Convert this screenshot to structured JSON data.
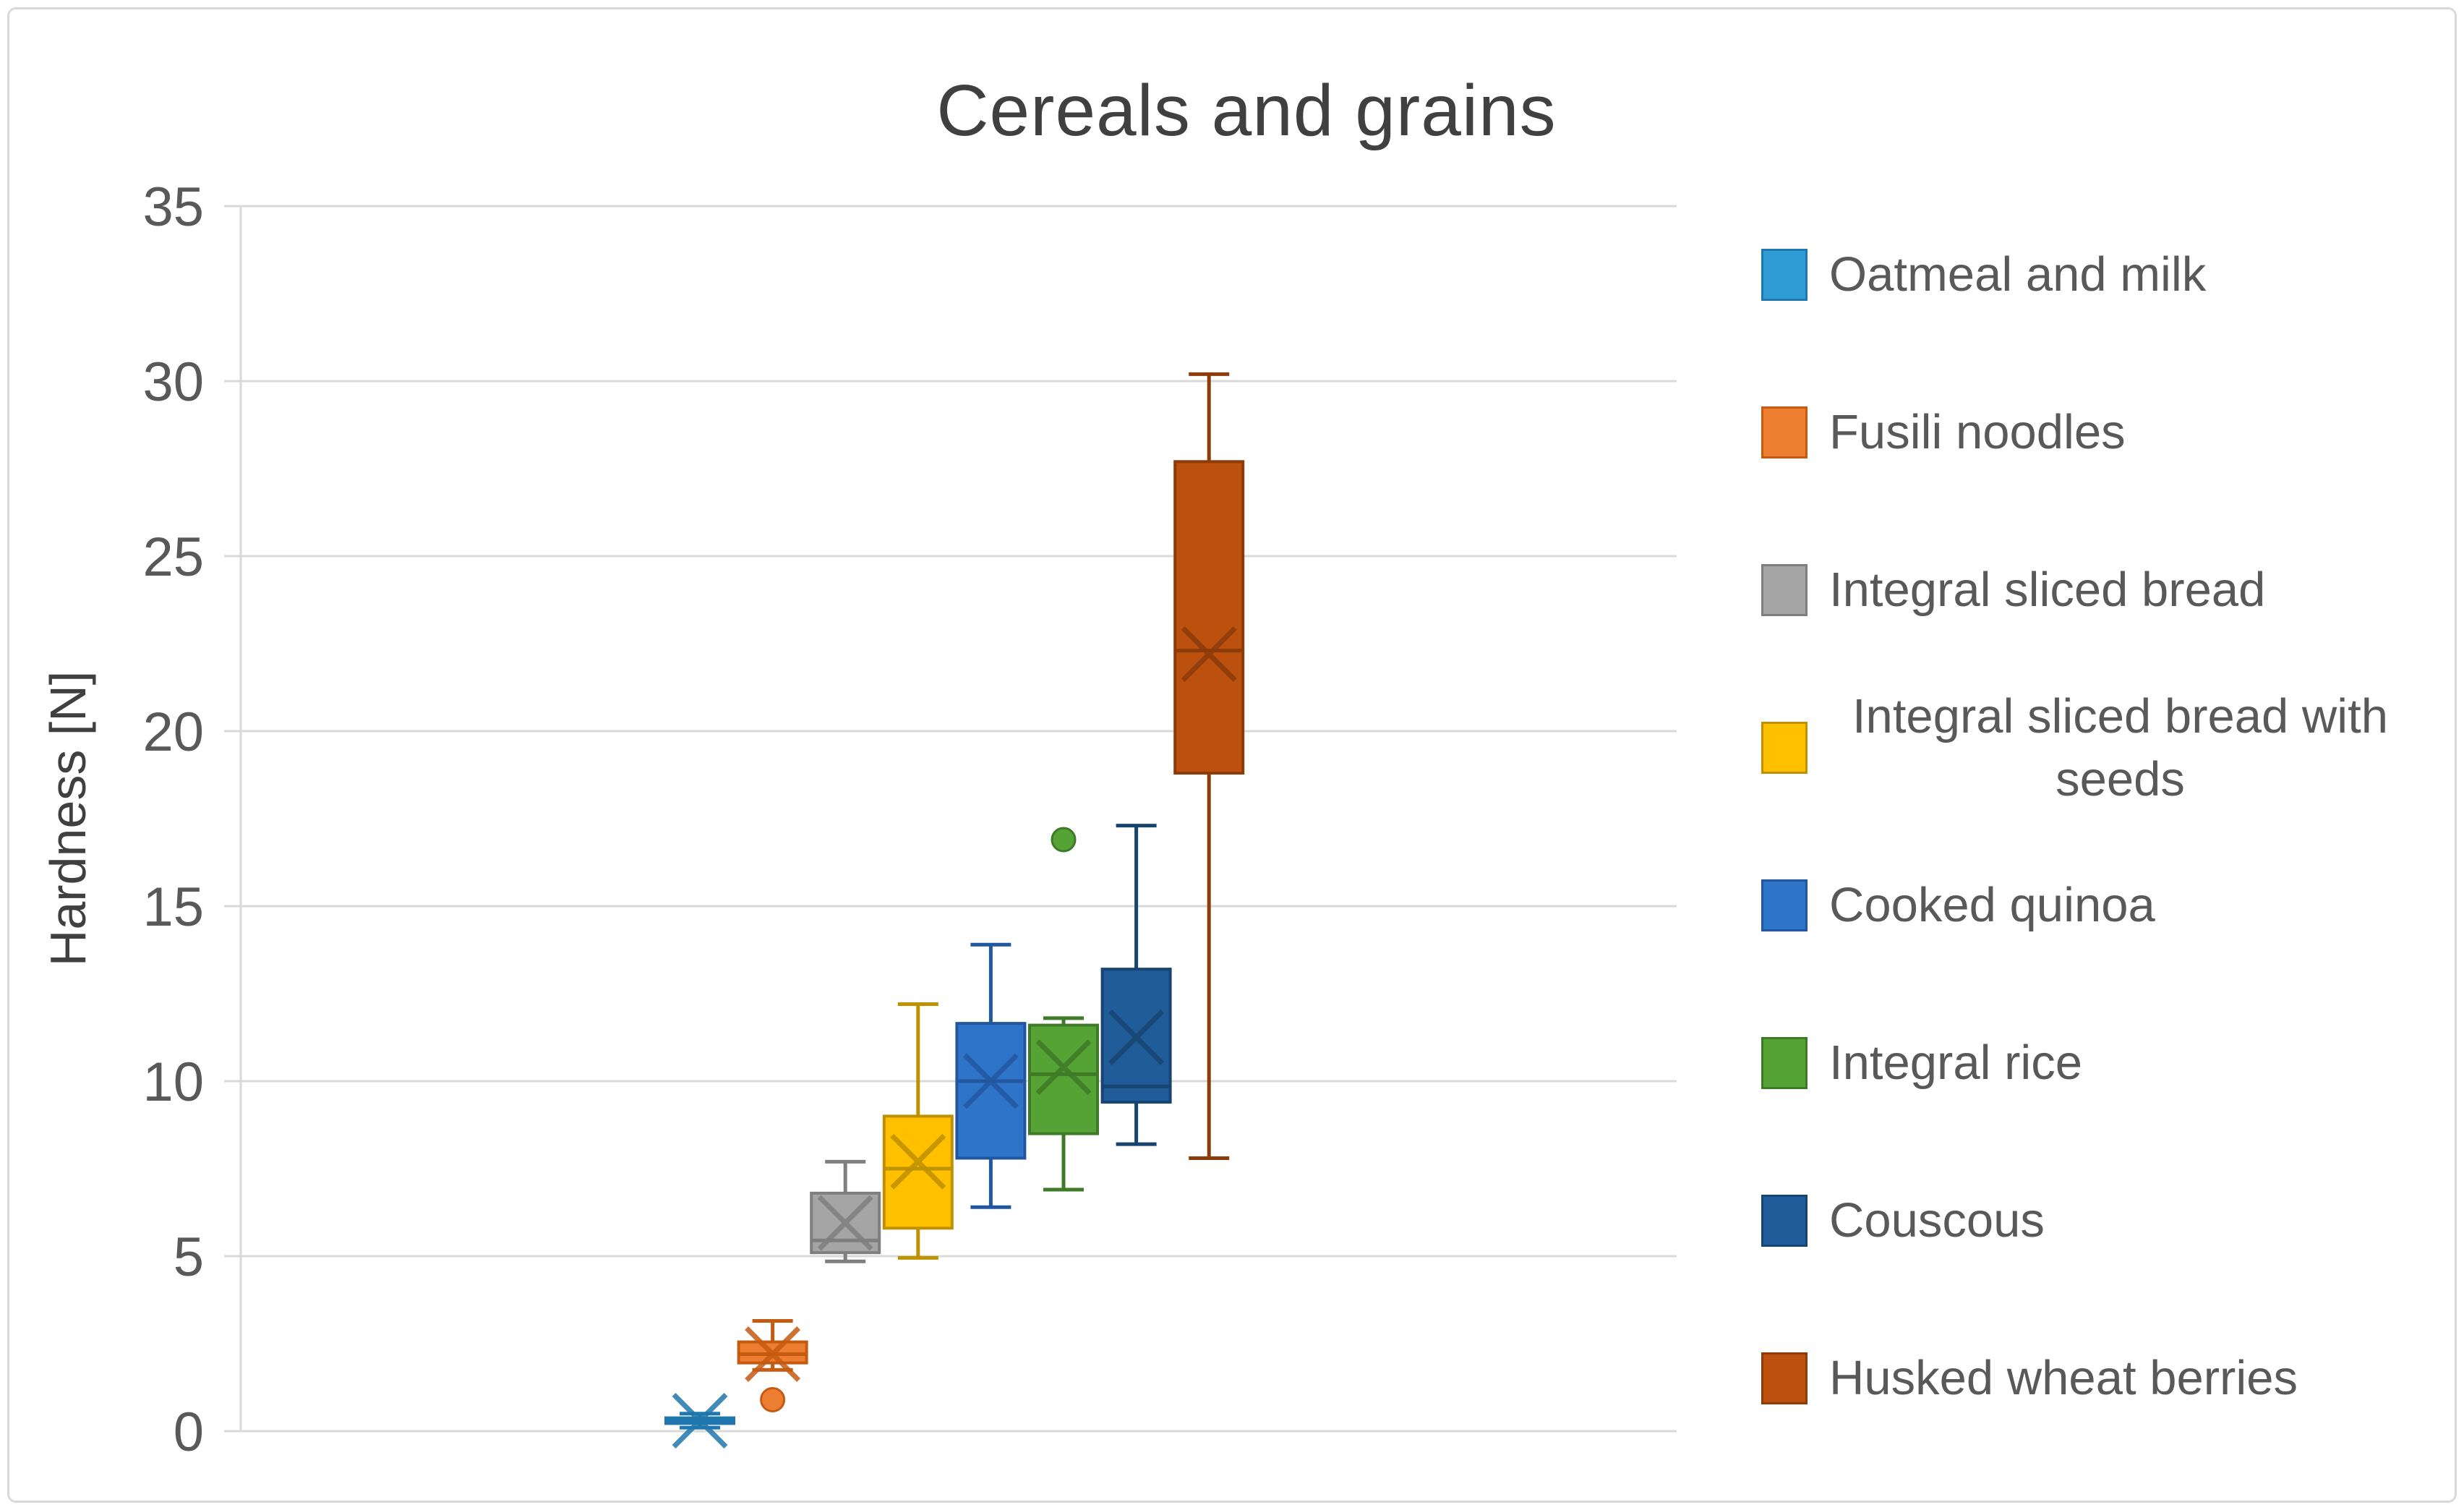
{
  "title": "Cereals and grains",
  "colors": {
    "title_text": "#404040",
    "axis_text": "#595959",
    "gridline": "#D9D9D9",
    "background": "#FFFFFF",
    "frame_border": "#D9D9D9"
  },
  "chart_data": {
    "type": "boxplot",
    "title": "Cereals and grains",
    "xlabel": "",
    "ylabel": "Hardness [N]",
    "ylim": [
      0,
      35
    ],
    "ytick_step": 5,
    "yticks": [
      "0",
      "5",
      "10",
      "15",
      "20",
      "25",
      "30",
      "35"
    ],
    "grid": true,
    "legend_position": "right",
    "series": [
      {
        "name": "Oatmeal and milk",
        "fill": "#2E9BD5",
        "stroke": "#1F77AD",
        "whisker_low": 0.1,
        "q1": 0.22,
        "median": 0.3,
        "q3": 0.38,
        "whisker_high": 0.5,
        "mean": 0.3,
        "outliers": []
      },
      {
        "name": "Fusili noodles",
        "fill": "#ED7D31",
        "stroke": "#C55A11",
        "whisker_low": 1.75,
        "q1": 1.95,
        "median": 2.2,
        "q3": 2.55,
        "whisker_high": 3.15,
        "mean": 2.2,
        "outliers": [
          0.9
        ]
      },
      {
        "name": "Integral sliced bread",
        "fill": "#A5A5A5",
        "stroke": "#7F7F7F",
        "whisker_low": 4.85,
        "q1": 5.1,
        "median": 5.45,
        "q3": 6.8,
        "whisker_high": 7.7,
        "mean": 5.95,
        "outliers": []
      },
      {
        "name": "Integral sliced bread with seeds",
        "fill": "#FFC000",
        "stroke": "#BF9000",
        "whisker_low": 4.95,
        "q1": 5.8,
        "median": 7.5,
        "q3": 9.0,
        "whisker_high": 12.2,
        "mean": 7.7,
        "outliers": []
      },
      {
        "name": "Cooked quinoa",
        "fill": "#2E75C9",
        "stroke": "#2257A0",
        "whisker_low": 6.4,
        "q1": 7.8,
        "median": 10.0,
        "q3": 11.65,
        "whisker_high": 13.9,
        "mean": 10.0,
        "outliers": []
      },
      {
        "name": "Integral rice",
        "fill": "#55A335",
        "stroke": "#3E7A27",
        "whisker_low": 6.9,
        "q1": 8.5,
        "median": 10.2,
        "q3": 11.6,
        "whisker_high": 11.8,
        "mean": 10.4,
        "outliers": [
          16.9
        ]
      },
      {
        "name": "Couscous",
        "fill": "#1F5C99",
        "stroke": "#164570",
        "whisker_low": 8.2,
        "q1": 9.4,
        "median": 9.85,
        "q3": 13.2,
        "whisker_high": 17.3,
        "mean": 11.25,
        "outliers": []
      },
      {
        "name": "Husked wheat berries",
        "fill": "#BC500E",
        "stroke": "#8C3C0A",
        "whisker_low": 7.8,
        "q1": 18.8,
        "median": 22.3,
        "q3": 27.7,
        "whisker_high": 30.2,
        "mean": 22.2,
        "outliers": []
      }
    ]
  }
}
